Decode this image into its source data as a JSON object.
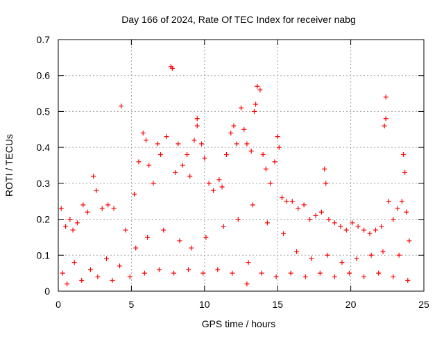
{
  "chart_data": {
    "type": "scatter",
    "title": "Day 166 of 2024, Rate Of TEC Index for receiver nabg",
    "xlabel": "GPS time / hours",
    "ylabel": "ROTI / TECUs",
    "xlim": [
      0,
      25
    ],
    "ylim": [
      0,
      0.7
    ],
    "xticks": [
      0,
      5,
      10,
      15,
      20,
      25
    ],
    "yticks": [
      0,
      0.1,
      0.2,
      0.3,
      0.4,
      0.5,
      0.6,
      0.7
    ],
    "grid": true,
    "marker": "+",
    "color": "#ff0000",
    "series": [
      {
        "points": [
          [
            0.2,
            0.23
          ],
          [
            0.5,
            0.18
          ],
          [
            0.8,
            0.2
          ],
          [
            1.0,
            0.17
          ],
          [
            1.3,
            0.19
          ],
          [
            1.7,
            0.24
          ],
          [
            2.0,
            0.22
          ],
          [
            2.4,
            0.32
          ],
          [
            2.6,
            0.28
          ],
          [
            3.0,
            0.23
          ],
          [
            3.4,
            0.24
          ],
          [
            3.8,
            0.23
          ],
          [
            4.3,
            0.515
          ],
          [
            4.6,
            0.17
          ],
          [
            5.2,
            0.27
          ],
          [
            5.5,
            0.36
          ],
          [
            5.8,
            0.44
          ],
          [
            6.0,
            0.42
          ],
          [
            6.2,
            0.35
          ],
          [
            6.5,
            0.3
          ],
          [
            6.8,
            0.41
          ],
          [
            7.0,
            0.38
          ],
          [
            7.4,
            0.43
          ],
          [
            7.7,
            0.625
          ],
          [
            7.8,
            0.62
          ],
          [
            8.0,
            0.33
          ],
          [
            8.2,
            0.41
          ],
          [
            8.5,
            0.35
          ],
          [
            8.8,
            0.38
          ],
          [
            9.0,
            0.32
          ],
          [
            9.3,
            0.42
          ],
          [
            9.5,
            0.46
          ],
          [
            9.5,
            0.48
          ],
          [
            9.8,
            0.41
          ],
          [
            10.0,
            0.37
          ],
          [
            10.3,
            0.3
          ],
          [
            10.6,
            0.28
          ],
          [
            11.0,
            0.31
          ],
          [
            11.2,
            0.29
          ],
          [
            11.5,
            0.38
          ],
          [
            11.8,
            0.44
          ],
          [
            12.0,
            0.46
          ],
          [
            12.2,
            0.41
          ],
          [
            12.5,
            0.51
          ],
          [
            12.7,
            0.45
          ],
          [
            12.9,
            0.41
          ],
          [
            13.2,
            0.39
          ],
          [
            13.4,
            0.5
          ],
          [
            13.5,
            0.52
          ],
          [
            13.6,
            0.57
          ],
          [
            13.8,
            0.56
          ],
          [
            14.0,
            0.38
          ],
          [
            14.2,
            0.34
          ],
          [
            14.5,
            0.3
          ],
          [
            14.8,
            0.36
          ],
          [
            15.0,
            0.43
          ],
          [
            15.1,
            0.4
          ],
          [
            15.3,
            0.26
          ],
          [
            15.6,
            0.25
          ],
          [
            16.0,
            0.25
          ],
          [
            16.4,
            0.23
          ],
          [
            16.8,
            0.24
          ],
          [
            17.2,
            0.2
          ],
          [
            17.6,
            0.21
          ],
          [
            18.0,
            0.22
          ],
          [
            18.2,
            0.34
          ],
          [
            18.3,
            0.3
          ],
          [
            18.5,
            0.2
          ],
          [
            18.9,
            0.19
          ],
          [
            19.3,
            0.18
          ],
          [
            19.7,
            0.17
          ],
          [
            20.1,
            0.19
          ],
          [
            20.5,
            0.18
          ],
          [
            20.9,
            0.17
          ],
          [
            21.3,
            0.16
          ],
          [
            21.7,
            0.17
          ],
          [
            22.1,
            0.18
          ],
          [
            22.3,
            0.46
          ],
          [
            22.4,
            0.54
          ],
          [
            22.4,
            0.48
          ],
          [
            22.6,
            0.25
          ],
          [
            22.9,
            0.2
          ],
          [
            23.2,
            0.23
          ],
          [
            23.5,
            0.25
          ],
          [
            23.6,
            0.38
          ],
          [
            23.7,
            0.33
          ],
          [
            23.8,
            0.22
          ],
          [
            24.0,
            0.14
          ],
          [
            0.3,
            0.05
          ],
          [
            1.1,
            0.08
          ],
          [
            2.2,
            0.06
          ],
          [
            3.3,
            0.09
          ],
          [
            4.2,
            0.07
          ],
          [
            5.3,
            0.12
          ],
          [
            6.1,
            0.15
          ],
          [
            7.2,
            0.17
          ],
          [
            8.3,
            0.14
          ],
          [
            9.1,
            0.12
          ],
          [
            10.1,
            0.15
          ],
          [
            11.3,
            0.18
          ],
          [
            12.3,
            0.2
          ],
          [
            13.0,
            0.08
          ],
          [
            13.3,
            0.24
          ],
          [
            14.3,
            0.19
          ],
          [
            15.4,
            0.16
          ],
          [
            16.3,
            0.11
          ],
          [
            17.3,
            0.09
          ],
          [
            18.4,
            0.1
          ],
          [
            19.4,
            0.08
          ],
          [
            20.4,
            0.09
          ],
          [
            21.4,
            0.1
          ],
          [
            22.2,
            0.11
          ],
          [
            23.3,
            0.1
          ],
          [
            0.6,
            0.02
          ],
          [
            1.6,
            0.03
          ],
          [
            2.7,
            0.04
          ],
          [
            3.7,
            0.03
          ],
          [
            4.9,
            0.04
          ],
          [
            5.9,
            0.05
          ],
          [
            6.9,
            0.06
          ],
          [
            7.9,
            0.05
          ],
          [
            8.9,
            0.06
          ],
          [
            9.9,
            0.05
          ],
          [
            10.9,
            0.06
          ],
          [
            11.9,
            0.05
          ],
          [
            12.9,
            0.02
          ],
          [
            13.9,
            0.05
          ],
          [
            14.9,
            0.04
          ],
          [
            15.9,
            0.05
          ],
          [
            16.9,
            0.04
          ],
          [
            17.9,
            0.05
          ],
          [
            18.9,
            0.04
          ],
          [
            19.9,
            0.05
          ],
          [
            20.9,
            0.04
          ],
          [
            21.9,
            0.05
          ],
          [
            22.9,
            0.04
          ],
          [
            23.9,
            0.03
          ]
        ]
      }
    ]
  }
}
